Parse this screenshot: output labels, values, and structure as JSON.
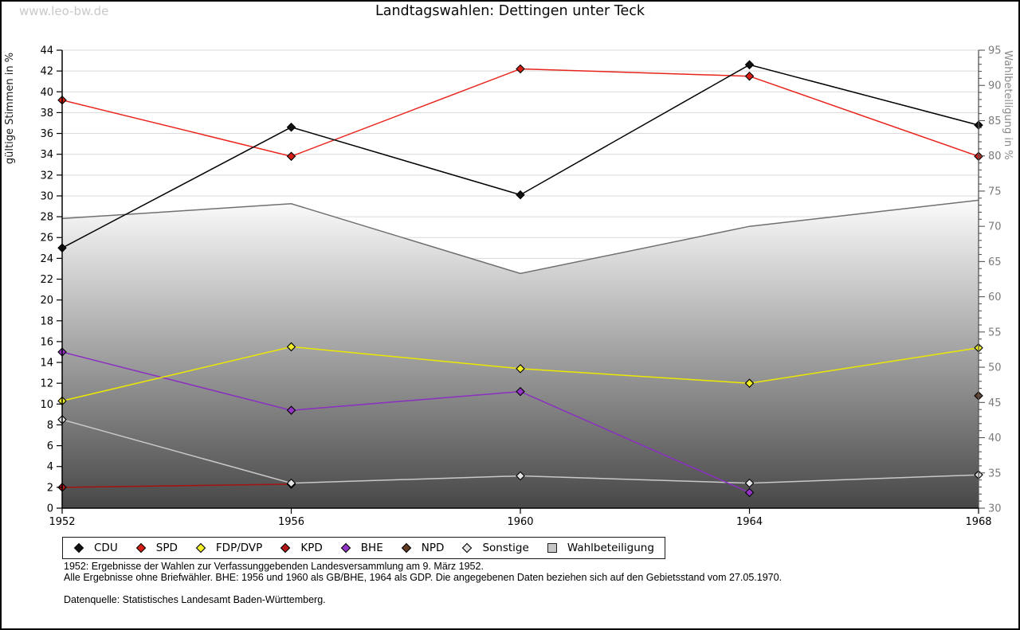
{
  "page": {
    "watermark": "www.leo-bw.de",
    "title": "Landtagswahlen: Dettingen unter Teck"
  },
  "chart_data": {
    "type": "line",
    "title": "Landtagswahlen: Dettingen unter Teck",
    "x": [
      1952,
      1956,
      1960,
      1964,
      1968
    ],
    "left_axis": {
      "label": "gültige Stimmen in %",
      "min": 0,
      "max": 44,
      "tick_step": 2
    },
    "right_axis": {
      "label": "Wahlbeteiligung in %",
      "min": 30,
      "max": 95,
      "tick_step": 5,
      "minor_tick_step": 1
    },
    "grid": true,
    "legend_position": "bottom",
    "series": [
      {
        "name": "CDU",
        "axis": "left",
        "style": "line",
        "color": "#000000",
        "marker": "#111111",
        "values": [
          25.0,
          36.6,
          30.1,
          42.6,
          36.8
        ]
      },
      {
        "name": "SPD",
        "axis": "left",
        "style": "line",
        "color": "#e8241c",
        "marker": "#d51f15",
        "values": [
          39.2,
          33.8,
          42.2,
          41.5,
          33.8
        ]
      },
      {
        "name": "FDP/DVP",
        "axis": "left",
        "style": "line",
        "color": "#ece800",
        "marker": "#f2ef2a",
        "values": [
          10.3,
          15.5,
          13.4,
          12.0,
          15.4
        ]
      },
      {
        "name": "KPD",
        "axis": "left",
        "style": "line",
        "color": "#a51212",
        "marker": "#b41717",
        "values": [
          2.0,
          2.3,
          null,
          null,
          null
        ]
      },
      {
        "name": "BHE",
        "axis": "left",
        "style": "line",
        "color": "#8a2fc0",
        "marker": "#9334c6",
        "values": [
          15.0,
          9.4,
          11.2,
          1.5,
          null
        ]
      },
      {
        "name": "NPD",
        "axis": "left",
        "style": "line",
        "color": "#583620",
        "marker": "#5f3b23",
        "values": [
          null,
          null,
          null,
          null,
          10.8
        ]
      },
      {
        "name": "Sonstige",
        "axis": "left",
        "style": "line",
        "color": "#c9c9c9",
        "marker": "#e4e4e4",
        "values": [
          8.5,
          2.4,
          3.1,
          2.4,
          3.2
        ]
      },
      {
        "name": "Wahlbeteiligung",
        "axis": "right",
        "style": "area",
        "color": "#757575",
        "marker": "#c6c6c6",
        "values": [
          71.1,
          73.2,
          63.3,
          70.0,
          73.7
        ]
      }
    ]
  },
  "footer": {
    "line1": "1952: Ergebnisse der Wahlen zur Verfassunggebenden Landesversammlung am 9. März 1952.",
    "line2": "Alle Ergebnisse ohne Briefwähler. BHE: 1956 und 1960 als GB/BHE, 1964 als GDP. Die angegebenen Daten beziehen sich auf den Gebietsstand vom 27.05.1970.",
    "source": "Datenquelle: Statistisches Landesamt Baden-Württemberg."
  }
}
